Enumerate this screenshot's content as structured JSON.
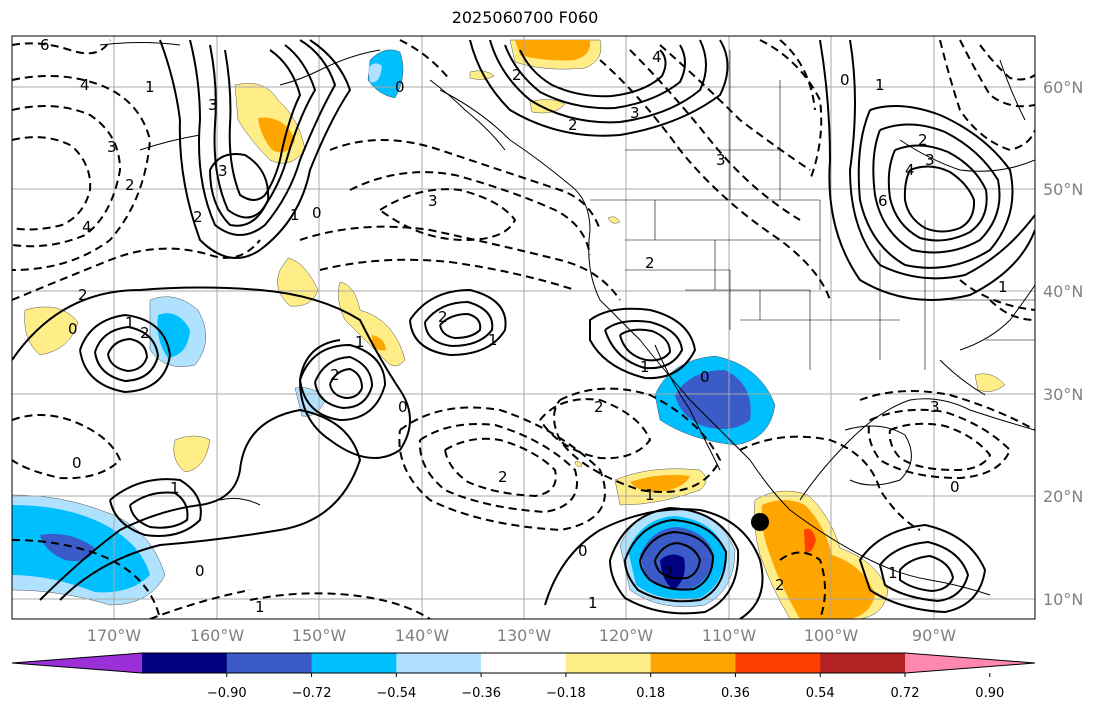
{
  "title": "2025060700 F060",
  "map": {
    "lat_labels": [
      "60°N",
      "50°N",
      "40°N",
      "30°N",
      "20°N",
      "10°N"
    ],
    "lon_labels": [
      "170°W",
      "160°W",
      "150°W",
      "140°W",
      "130°W",
      "120°W",
      "110°W",
      "100°W",
      "90°W"
    ],
    "contour_labels": [
      "6",
      "4",
      "3",
      "3",
      "2",
      "2",
      "1",
      "0",
      "4",
      "3",
      "1",
      "0",
      "2",
      "3",
      "2",
      "4",
      "3",
      "6",
      "4",
      "3",
      "2",
      "1",
      "0",
      "2",
      "3",
      "2",
      "1",
      "0",
      "2",
      "1",
      "2",
      "1",
      "0",
      "2",
      "1",
      "0",
      "1",
      "0",
      "2",
      "2",
      "3",
      "2",
      "2",
      "1",
      "0",
      "1",
      "0",
      "1",
      "1",
      "0",
      "1"
    ],
    "marker": "black-dot"
  },
  "colorbar": {
    "ticks": [
      "−0.90",
      "−0.72",
      "−0.54",
      "−0.36",
      "−0.18",
      "0.18",
      "0.36",
      "0.54",
      "0.72",
      "0.90"
    ],
    "colors": [
      "#9b30d9",
      "#000080",
      "#3a5bc8",
      "#00bfff",
      "#b0e2ff",
      "#ffffff",
      "#ffee88",
      "#ffa500",
      "#ff4000",
      "#b22222",
      "#ff88b0"
    ]
  }
}
